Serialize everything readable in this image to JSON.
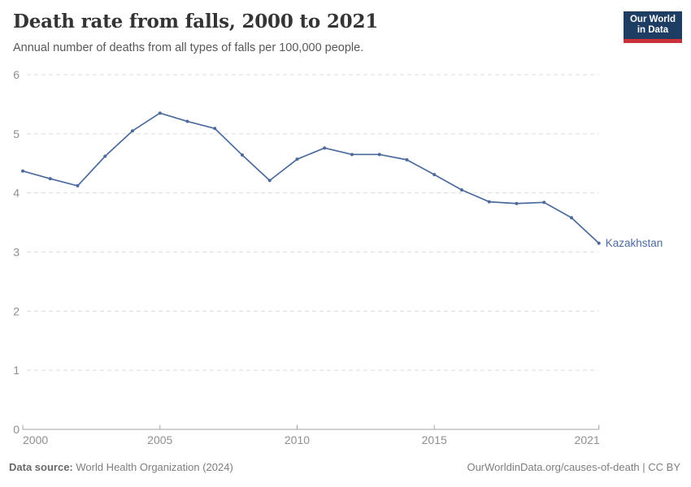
{
  "header": {
    "title": "Death rate from falls, 2000 to 2021",
    "subtitle": "Annual number of deaths from all types of falls per 100,000 people.",
    "logo": {
      "line1": "Our World",
      "line2": "in Data"
    }
  },
  "chart_data": {
    "type": "line",
    "title": "Death rate from falls, 2000 to 2021",
    "xlabel": "",
    "ylabel": "",
    "x": [
      2000,
      2001,
      2002,
      2003,
      2004,
      2005,
      2006,
      2007,
      2008,
      2009,
      2010,
      2011,
      2012,
      2013,
      2014,
      2015,
      2016,
      2017,
      2018,
      2019,
      2020,
      2021
    ],
    "series": [
      {
        "name": "Kazakhstan",
        "color": "#4C6A9C",
        "values": [
          4.37,
          4.24,
          4.12,
          4.62,
          5.05,
          5.35,
          5.21,
          5.09,
          4.64,
          4.21,
          4.57,
          4.76,
          4.65,
          4.65,
          4.56,
          4.31,
          4.05,
          3.85,
          3.82,
          3.84,
          3.58,
          3.15
        ]
      }
    ],
    "ylim": [
      0,
      6
    ],
    "yticks": [
      0,
      1,
      2,
      3,
      4,
      5,
      6
    ],
    "xticks": [
      2000,
      2005,
      2010,
      2015,
      2021
    ],
    "grid": "horizontal-dashed",
    "legend_position": "line-end-label"
  },
  "footer": {
    "source_label": "Data source:",
    "source_value": " World Health Organization (2024)",
    "right_text": "OurWorldinData.org/causes-of-death | CC BY"
  },
  "colors": {
    "line": "#4C6A9C",
    "grid": "#DCDCDC",
    "axis": "#A3A3A3",
    "tick_text": "#8F8F8F",
    "title_text": "#343434",
    "subtitle_text": "#56595B",
    "footer_text": "#7E7E7E",
    "logo_bg": "#1D3D63",
    "logo_red": "#C8303A"
  }
}
